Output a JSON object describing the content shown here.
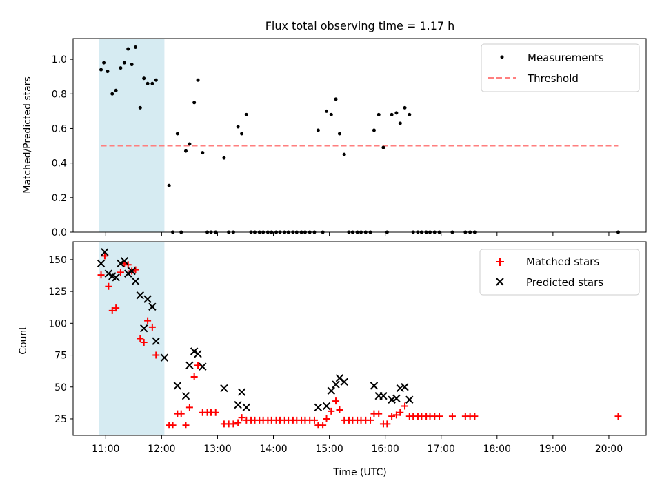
{
  "chart_data": [
    {
      "type": "scatter",
      "title": "Flux total observing time = 1.17 h",
      "xlabel": "",
      "ylabel": "Matched/Predicted stars",
      "xlim": [
        "10:25",
        "20:40"
      ],
      "ylim": [
        0,
        1.12
      ],
      "yticks": [
        "0.0",
        "0.2",
        "0.4",
        "0.6",
        "0.8",
        "1.0"
      ],
      "yticks_values": [
        0,
        0.2,
        0.4,
        0.6,
        0.8,
        1.0
      ],
      "shaded_span": [
        "10:53",
        "12:03"
      ],
      "shaded_color": "#add8e6",
      "legend_position": "top-right",
      "series": [
        {
          "name": "Measurements",
          "marker": "dot",
          "color": "#000000",
          "points": [
            [
              "10:55",
              0.94
            ],
            [
              "10:58",
              0.98
            ],
            [
              "11:02",
              0.93
            ],
            [
              "11:07",
              0.8
            ],
            [
              "11:11",
              0.82
            ],
            [
              "11:16",
              0.95
            ],
            [
              "11:20",
              0.98
            ],
            [
              "11:24",
              1.06
            ],
            [
              "11:28",
              0.97
            ],
            [
              "11:32",
              1.07
            ],
            [
              "11:37",
              0.72
            ],
            [
              "11:41",
              0.89
            ],
            [
              "11:45",
              0.86
            ],
            [
              "11:50",
              0.86
            ],
            [
              "11:54",
              0.88
            ],
            [
              "12:08",
              0.27
            ],
            [
              "12:12",
              0.0
            ],
            [
              "12:17",
              0.57
            ],
            [
              "12:21",
              0.0
            ],
            [
              "12:26",
              0.47
            ],
            [
              "12:30",
              0.51
            ],
            [
              "12:35",
              0.75
            ],
            [
              "12:39",
              0.88
            ],
            [
              "12:44",
              0.46
            ],
            [
              "12:49",
              0.0
            ],
            [
              "12:53",
              0.0
            ],
            [
              "12:58",
              0.0
            ],
            [
              "13:07",
              0.43
            ],
            [
              "13:12",
              0.0
            ],
            [
              "13:17",
              0.0
            ],
            [
              "13:22",
              0.61
            ],
            [
              "13:26",
              0.57
            ],
            [
              "13:31",
              0.68
            ],
            [
              "13:36",
              0.0
            ],
            [
              "13:40",
              0.0
            ],
            [
              "13:45",
              0.0
            ],
            [
              "13:49",
              0.0
            ],
            [
              "13:54",
              0.0
            ],
            [
              "13:58",
              0.0
            ],
            [
              "14:03",
              0.0
            ],
            [
              "14:07",
              0.0
            ],
            [
              "14:12",
              0.0
            ],
            [
              "14:16",
              0.0
            ],
            [
              "14:21",
              0.0
            ],
            [
              "14:25",
              0.0
            ],
            [
              "14:30",
              0.0
            ],
            [
              "14:34",
              0.0
            ],
            [
              "14:39",
              0.0
            ],
            [
              "14:44",
              0.0
            ],
            [
              "14:48",
              0.59
            ],
            [
              "14:53",
              0.0
            ],
            [
              "14:57",
              0.7
            ],
            [
              "15:02",
              0.68
            ],
            [
              "15:07",
              0.77
            ],
            [
              "15:11",
              0.57
            ],
            [
              "15:16",
              0.45
            ],
            [
              "15:21",
              0.0
            ],
            [
              "15:25",
              0.0
            ],
            [
              "15:30",
              0.0
            ],
            [
              "15:34",
              0.0
            ],
            [
              "15:39",
              0.0
            ],
            [
              "15:44",
              0.0
            ],
            [
              "15:48",
              0.59
            ],
            [
              "15:53",
              0.68
            ],
            [
              "15:58",
              0.49
            ],
            [
              "16:02",
              0.0
            ],
            [
              "16:07",
              0.68
            ],
            [
              "16:12",
              0.69
            ],
            [
              "16:16",
              0.63
            ],
            [
              "16:21",
              0.72
            ],
            [
              "16:26",
              0.68
            ],
            [
              "16:30",
              0.0
            ],
            [
              "16:35",
              0.0
            ],
            [
              "16:39",
              0.0
            ],
            [
              "16:44",
              0.0
            ],
            [
              "16:48",
              0.0
            ],
            [
              "16:53",
              0.0
            ],
            [
              "16:58",
              0.0
            ],
            [
              "17:12",
              0.0
            ],
            [
              "17:26",
              0.0
            ],
            [
              "17:31",
              0.0
            ],
            [
              "17:36",
              0.0
            ],
            [
              "20:10",
              0.0
            ]
          ]
        },
        {
          "name": "Threshold",
          "marker": "dashed-line",
          "color": "#ff7f7f",
          "points": [
            [
              "10:55",
              0.5
            ],
            [
              "20:10",
              0.5
            ]
          ]
        }
      ]
    },
    {
      "type": "scatter",
      "title": "",
      "xlabel": "Time (UTC)",
      "ylabel": "Count",
      "xlim": [
        "10:25",
        "20:40"
      ],
      "xticks": [
        "11:00",
        "12:00",
        "13:00",
        "14:00",
        "15:00",
        "16:00",
        "17:00",
        "18:00",
        "19:00",
        "20:00"
      ],
      "ylim": [
        12,
        164
      ],
      "yticks": [
        "25",
        "50",
        "75",
        "100",
        "125",
        "150"
      ],
      "yticks_values": [
        25,
        50,
        75,
        100,
        125,
        150
      ],
      "shaded_span": [
        "10:53",
        "12:03"
      ],
      "shaded_color": "#add8e6",
      "legend_position": "top-right",
      "series": [
        {
          "name": "Matched stars",
          "marker": "plus",
          "color": "#ff0000",
          "points": [
            [
              "10:55",
              138
            ],
            [
              "10:59",
              153
            ],
            [
              "11:03",
              129
            ],
            [
              "11:07",
              110
            ],
            [
              "11:11",
              112
            ],
            [
              "11:16",
              140
            ],
            [
              "11:20",
              147
            ],
            [
              "11:24",
              146
            ],
            [
              "11:28",
              141
            ],
            [
              "11:32",
              142
            ],
            [
              "11:37",
              88
            ],
            [
              "11:41",
              85
            ],
            [
              "11:45",
              102
            ],
            [
              "11:50",
              97
            ],
            [
              "11:54",
              75
            ],
            [
              "12:08",
              20
            ],
            [
              "12:12",
              20
            ],
            [
              "12:17",
              29
            ],
            [
              "12:21",
              29
            ],
            [
              "12:26",
              20
            ],
            [
              "12:30",
              34
            ],
            [
              "12:35",
              58
            ],
            [
              "12:39",
              67
            ],
            [
              "12:44",
              30
            ],
            [
              "12:49",
              30
            ],
            [
              "12:53",
              30
            ],
            [
              "12:58",
              30
            ],
            [
              "13:07",
              21
            ],
            [
              "13:12",
              21
            ],
            [
              "13:17",
              21
            ],
            [
              "13:22",
              22
            ],
            [
              "13:26",
              26
            ],
            [
              "13:31",
              24
            ],
            [
              "13:36",
              24
            ],
            [
              "13:40",
              24
            ],
            [
              "13:45",
              24
            ],
            [
              "13:49",
              24
            ],
            [
              "13:54",
              24
            ],
            [
              "13:58",
              24
            ],
            [
              "14:03",
              24
            ],
            [
              "14:07",
              24
            ],
            [
              "14:12",
              24
            ],
            [
              "14:16",
              24
            ],
            [
              "14:21",
              24
            ],
            [
              "14:25",
              24
            ],
            [
              "14:30",
              24
            ],
            [
              "14:34",
              24
            ],
            [
              "14:39",
              24
            ],
            [
              "14:44",
              24
            ],
            [
              "14:48",
              20
            ],
            [
              "14:53",
              20
            ],
            [
              "14:57",
              25
            ],
            [
              "15:02",
              31
            ],
            [
              "15:07",
              39
            ],
            [
              "15:11",
              32
            ],
            [
              "15:16",
              24
            ],
            [
              "15:21",
              24
            ],
            [
              "15:25",
              24
            ],
            [
              "15:30",
              24
            ],
            [
              "15:34",
              24
            ],
            [
              "15:39",
              24
            ],
            [
              "15:44",
              24
            ],
            [
              "15:48",
              29
            ],
            [
              "15:53",
              29
            ],
            [
              "15:58",
              21
            ],
            [
              "16:02",
              21
            ],
            [
              "16:07",
              27
            ],
            [
              "16:12",
              28
            ],
            [
              "16:16",
              30
            ],
            [
              "16:21",
              35
            ],
            [
              "16:26",
              27
            ],
            [
              "16:30",
              27
            ],
            [
              "16:35",
              27
            ],
            [
              "16:39",
              27
            ],
            [
              "16:44",
              27
            ],
            [
              "16:48",
              27
            ],
            [
              "16:53",
              27
            ],
            [
              "16:58",
              27
            ],
            [
              "17:12",
              27
            ],
            [
              "17:26",
              27
            ],
            [
              "17:31",
              27
            ],
            [
              "17:36",
              27
            ],
            [
              "20:10",
              27
            ]
          ]
        },
        {
          "name": "Predicted stars",
          "marker": "x",
          "color": "#000000",
          "points": [
            [
              "10:55",
              147
            ],
            [
              "10:59",
              156
            ],
            [
              "11:03",
              139
            ],
            [
              "11:07",
              137
            ],
            [
              "11:11",
              136
            ],
            [
              "11:16",
              147
            ],
            [
              "11:20",
              149
            ],
            [
              "11:24",
              139
            ],
            [
              "11:28",
              141
            ],
            [
              "11:32",
              133
            ],
            [
              "11:37",
              122
            ],
            [
              "11:41",
              96
            ],
            [
              "11:45",
              119
            ],
            [
              "11:50",
              113
            ],
            [
              "11:54",
              86
            ],
            [
              "12:03",
              73
            ],
            [
              "12:17",
              51
            ],
            [
              "12:26",
              43
            ],
            [
              "12:30",
              67
            ],
            [
              "12:35",
              78
            ],
            [
              "12:39",
              76
            ],
            [
              "12:44",
              66
            ],
            [
              "13:07",
              49
            ],
            [
              "13:22",
              36
            ],
            [
              "13:26",
              46
            ],
            [
              "13:31",
              34
            ],
            [
              "14:48",
              34
            ],
            [
              "14:57",
              35
            ],
            [
              "15:02",
              47
            ],
            [
              "15:07",
              52
            ],
            [
              "15:11",
              57
            ],
            [
              "15:16",
              54
            ],
            [
              "15:48",
              51
            ],
            [
              "15:53",
              43
            ],
            [
              "15:58",
              43
            ],
            [
              "16:07",
              40
            ],
            [
              "16:12",
              41
            ],
            [
              "16:16",
              49
            ],
            [
              "16:21",
              50
            ],
            [
              "16:26",
              40
            ]
          ]
        }
      ]
    }
  ]
}
